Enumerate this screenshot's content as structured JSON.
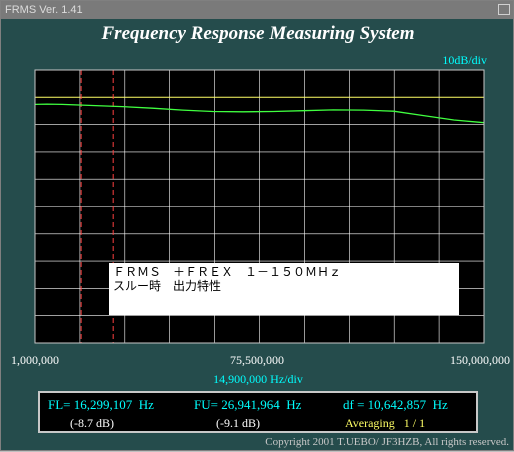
{
  "window": {
    "title": "FRMS   Ver. 1.41"
  },
  "app_title": "Frequency Response Measuring System",
  "scale_label": "10dB/div",
  "x_axis": {
    "ticks": [
      "1,000,000",
      "75,500,000",
      "150,000,000"
    ],
    "unit_label": "14,900,000  Hz/div"
  },
  "annotation": {
    "line1": "ＦＲＭＳ　＋ＦＲＥＸ　１－１５０ＭＨｚ",
    "line2": "スルー時　出力特性"
  },
  "readout": {
    "fl": "FL= 16,299,107  Hz",
    "fu": "FU= 26,941,964  Hz",
    "df": "df = 10,642,857  Hz",
    "fl_db": "(-8.7 dB)",
    "fu_db": "(-9.1 dB)",
    "averaging": "Averaging   1 / 1"
  },
  "copyright": "Copyright 2001 T.UEBO/ JF3HZB, All rights reserved.",
  "colors": {
    "background": "#254c4c",
    "plot_background": "#000000",
    "grid": "#ffffff",
    "reference_line": "#ffff66",
    "trace": "#40ff40",
    "markers": "#ff4040",
    "cyan_text": "#00ffff"
  },
  "chart_data": {
    "type": "line",
    "x_unit": "Hz",
    "xlim": [
      1000000,
      150000000
    ],
    "x_div": 14900000,
    "y_div_db": 10,
    "y_divisions": 10,
    "reference_level_div_from_top": 1,
    "markers": [
      16299107,
      26941964
    ],
    "series": [
      {
        "x": [
          1000000,
          5000000,
          10000000,
          20000000,
          30000000,
          40000000,
          50000000,
          60000000,
          70000000,
          80000000,
          90000000,
          100000000,
          110000000,
          120000000,
          130000000,
          140000000,
          150000000
        ],
        "y": [
          -2.6,
          -2.5,
          -2.6,
          -3.0,
          -3.4,
          -4.0,
          -4.7,
          -5.2,
          -5.3,
          -5.2,
          -4.9,
          -4.6,
          -4.7,
          -5.1,
          -6.7,
          -8.3,
          -9.3
        ]
      }
    ]
  }
}
